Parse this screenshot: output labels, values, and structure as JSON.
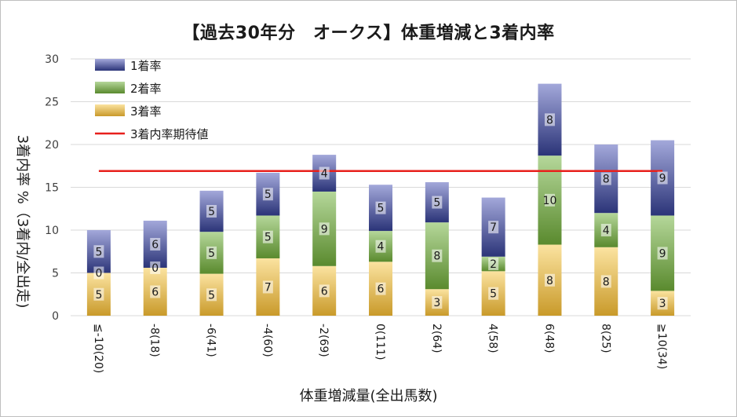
{
  "chart_data": {
    "type": "bar",
    "stacked": true,
    "title": "【過去30年分　オークス】体重増減と3着内率",
    "xlabel": "体重増減量(全出馬数)",
    "ylabel": "3着内率 %（3着内/全出走)",
    "ylim": [
      0,
      30
    ],
    "yticks": [
      "0",
      "5",
      "10",
      "15",
      "20",
      "25",
      "30"
    ],
    "grid": true,
    "legend_position": "top-left",
    "categories": [
      "≦-10(20)",
      "-8(18)",
      "-6(41)",
      "-4(60)",
      "-2(69)",
      "0(111)",
      "2(64)",
      "4(58)",
      "6(48)",
      "8(25)",
      "≧10(34)"
    ],
    "series": [
      {
        "name": "3着率",
        "values": [
          5.0,
          5.6,
          4.9,
          6.7,
          5.8,
          6.3,
          3.1,
          5.2,
          8.3,
          8.0,
          2.9
        ],
        "labels": [
          "5",
          "6",
          "5",
          "7",
          "6",
          "6",
          "3",
          "5",
          "8",
          "8",
          "3"
        ],
        "color": "#c99a2a"
      },
      {
        "name": "2着率",
        "values": [
          0.0,
          0.0,
          4.9,
          5.0,
          8.7,
          3.6,
          7.8,
          1.7,
          10.4,
          4.0,
          8.8
        ],
        "labels": [
          "0",
          "0",
          "5",
          "5",
          "9",
          "4",
          "8",
          "2",
          "10",
          "4",
          "9"
        ],
        "color": "#5a8a2e"
      },
      {
        "name": "1着率",
        "values": [
          5.0,
          5.5,
          4.8,
          5.0,
          4.3,
          5.4,
          4.7,
          6.9,
          8.4,
          8.0,
          8.8
        ],
        "labels": [
          "5",
          "6",
          "5",
          "5",
          "4",
          "5",
          "5",
          "7",
          "8",
          "8",
          "9"
        ],
        "color": "#2b3478"
      }
    ],
    "reference_line": {
      "name": "3着内率期待値",
      "value": 16.9,
      "color": "#e8201c"
    }
  }
}
